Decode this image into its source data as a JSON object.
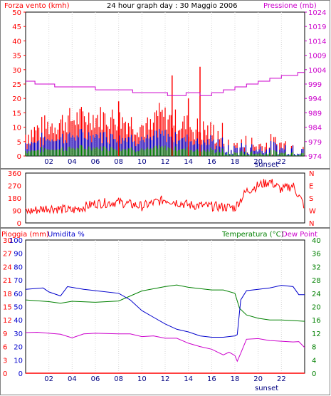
{
  "chart_data": [
    {
      "type": "line",
      "title": "24 hour graph day : 30 Maggio 2006",
      "left_label": "Forza vento (kmh)",
      "right_label": "Pressione (mb)",
      "y_ticks": [
        0,
        5,
        10,
        15,
        20,
        25,
        30,
        35,
        40,
        45,
        50
      ],
      "y_range": [
        0,
        50
      ],
      "y2_ticks": [
        974,
        979,
        984,
        989,
        994,
        999,
        1004,
        1009,
        1014,
        1019,
        1024
      ],
      "y2_range": [
        974,
        1024
      ],
      "x_ticks": [
        "02",
        "04",
        "06",
        "08",
        "10",
        "12",
        "14",
        "16",
        "18",
        "20",
        "22"
      ],
      "x_note": "sunset",
      "x_range": [
        0,
        24
      ],
      "pressure": {
        "x": [
          0,
          0.8,
          0.8,
          2.5,
          2.5,
          6,
          6,
          9.2,
          9.2,
          12.2,
          12.2,
          13.8,
          13.8,
          15,
          15,
          16,
          16,
          17,
          17,
          18,
          18,
          19,
          19,
          20,
          20,
          21,
          21,
          22,
          22,
          23.4,
          23.4,
          24
        ],
        "y": [
          1000,
          1000,
          999,
          999,
          998,
          998,
          997,
          997,
          996,
          996,
          995,
          995,
          996,
          996,
          995,
          995,
          996,
          996,
          997,
          997,
          998,
          998,
          999,
          999,
          1000,
          1000,
          1001,
          1001,
          1002,
          1002,
          1003,
          1003
        ]
      },
      "wind_gust_peaks": [
        {
          "x": 12.6,
          "y": 28
        },
        {
          "x": 15.0,
          "y": 31
        },
        {
          "x": 8.0,
          "y": 19
        },
        {
          "x": 14.0,
          "y": 20
        }
      ],
      "colors": {
        "gust": "#ff0000",
        "mean": "#0000cc",
        "min": "#008000",
        "pressure": "#cc00cc"
      }
    },
    {
      "type": "line",
      "y_ticks_left": [
        "0",
        "90",
        "180",
        "270",
        "360"
      ],
      "y_ticks_right": [
        "N",
        "E",
        "S",
        "W",
        "N"
      ],
      "y_range": [
        0,
        360
      ],
      "direction": {
        "x": [
          0,
          2,
          4,
          6,
          8,
          10,
          12,
          14,
          16,
          18,
          19,
          20,
          21,
          22,
          23,
          24
        ],
        "y": [
          80,
          110,
          90,
          140,
          150,
          120,
          170,
          130,
          120,
          110,
          230,
          270,
          300,
          240,
          270,
          120
        ]
      },
      "color": "#ff0000"
    },
    {
      "type": "line",
      "left_labels": [
        "Pioggia (mm)",
        "Umidita %"
      ],
      "right_labels": [
        "Temperatura (°C)",
        "Dew Point"
      ],
      "rain_ticks": [
        0,
        3,
        6,
        9,
        12,
        15,
        18,
        21,
        24,
        27,
        30
      ],
      "hum_ticks": [
        0,
        10,
        20,
        30,
        40,
        50,
        60,
        70,
        80,
        90,
        100
      ],
      "temp_ticks": [
        0,
        4,
        8,
        12,
        16,
        20,
        24,
        28,
        32,
        36,
        40
      ],
      "x_ticks": [
        "02",
        "04",
        "06",
        "08",
        "10",
        "12",
        "14",
        "16",
        "18",
        "20",
        "22"
      ],
      "x_note": "sunset",
      "temperature": {
        "x": [
          0,
          2,
          3,
          4,
          6,
          8,
          10,
          12,
          13,
          14,
          16,
          17,
          18,
          18.4,
          19,
          20,
          21,
          22,
          23,
          24
        ],
        "y": [
          22,
          21.5,
          21,
          21.6,
          21.3,
          21.7,
          24.7,
          26,
          26.5,
          25.8,
          25,
          25,
          24,
          19.5,
          17.5,
          16.5,
          16,
          16,
          15.8,
          15.6
        ]
      },
      "humidity": {
        "x": [
          0,
          1.5,
          2,
          3,
          3.6,
          5,
          6,
          8,
          9,
          10,
          11,
          12,
          13,
          14,
          15,
          16,
          17,
          18,
          18.2,
          18.5,
          19,
          20,
          21,
          22,
          23,
          23.5,
          24
        ],
        "y": [
          63,
          64,
          61,
          58,
          65,
          63,
          62,
          60,
          55,
          47,
          42,
          37,
          33,
          31,
          28,
          27,
          27,
          28,
          29,
          55,
          62,
          63,
          64,
          66,
          65,
          59,
          59
        ]
      },
      "dew_point": {
        "x": [
          0,
          1,
          2,
          3,
          4,
          5,
          6,
          8,
          9,
          10,
          11,
          12,
          13,
          14,
          15,
          16,
          17,
          17.5,
          18,
          18.2,
          18.5,
          19,
          20,
          21,
          22,
          23,
          23.5,
          24
        ],
        "y": [
          12.2,
          12.3,
          12,
          11.7,
          10.6,
          11.8,
          12,
          11.8,
          11.8,
          11,
          11.2,
          10.5,
          10.5,
          9,
          8,
          7.2,
          5.5,
          6.3,
          5.3,
          3.6,
          6,
          10.2,
          10.4,
          9.8,
          9.6,
          9.4,
          9.5,
          7.7
        ]
      },
      "rain": {
        "x": [
          0,
          24
        ],
        "y": [
          0,
          0
        ]
      },
      "colors": {
        "temperature": "#008000",
        "humidity": "#0000cc",
        "dew": "#cc00cc",
        "rain": "#ff0000"
      }
    }
  ]
}
